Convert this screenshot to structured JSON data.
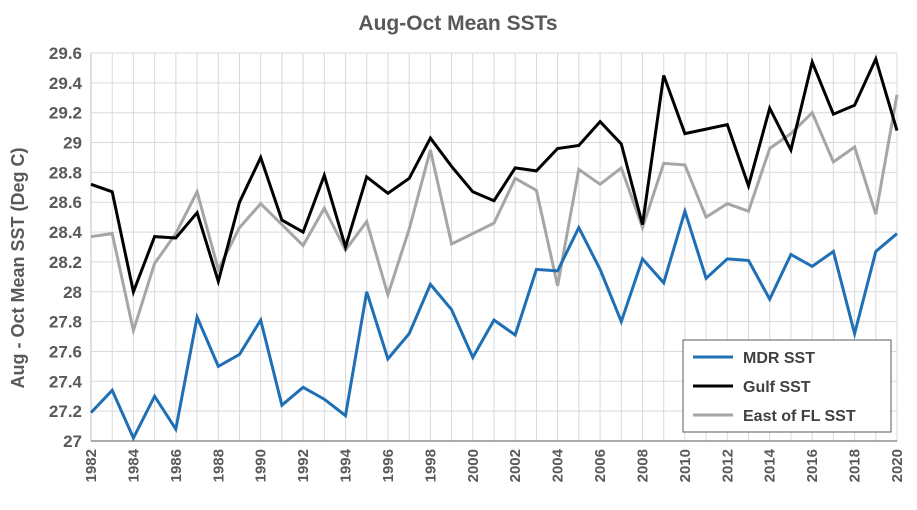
{
  "chart_data": {
    "type": "line",
    "title": "Aug-Oct Mean SSTs",
    "xlabel": "",
    "ylabel": "Aug - Oct Mean SST (Deg C)",
    "xlim": [
      1982,
      2020
    ],
    "ylim": [
      27,
      29.6
    ],
    "y_ticks": [
      "27",
      "27.2",
      "27.4",
      "27.6",
      "27.8",
      "28",
      "28.2",
      "28.4",
      "28.6",
      "28.8",
      "29",
      "29.2",
      "29.4",
      "29.6"
    ],
    "x_ticks": [
      "1982",
      "1984",
      "1986",
      "1988",
      "1990",
      "1992",
      "1994",
      "1996",
      "1998",
      "2000",
      "2002",
      "2004",
      "2006",
      "2008",
      "2010",
      "2012",
      "2014",
      "2016",
      "2018",
      "2020"
    ],
    "grid": true,
    "legend_position": "bottom-right",
    "x": [
      1982,
      1983,
      1984,
      1985,
      1986,
      1987,
      1988,
      1989,
      1990,
      1991,
      1992,
      1993,
      1994,
      1995,
      1996,
      1997,
      1998,
      1999,
      2000,
      2001,
      2002,
      2003,
      2004,
      2005,
      2006,
      2007,
      2008,
      2009,
      2010,
      2011,
      2012,
      2013,
      2014,
      2015,
      2016,
      2017,
      2018,
      2019,
      2020
    ],
    "series": [
      {
        "name": "MDR SST",
        "color": "#1f6fb5",
        "values": [
          27.19,
          27.34,
          27.02,
          27.3,
          27.08,
          27.83,
          27.5,
          27.58,
          27.81,
          27.24,
          27.36,
          27.28,
          27.17,
          28.0,
          27.55,
          27.72,
          28.05,
          27.88,
          27.56,
          27.81,
          27.71,
          28.15,
          28.14,
          28.43,
          28.15,
          27.8,
          28.22,
          28.06,
          28.54,
          28.09,
          28.22,
          28.21,
          27.95,
          28.25,
          28.17,
          28.27,
          27.72,
          28.27,
          28.39
        ]
      },
      {
        "name": "Gulf SST",
        "color": "#000000",
        "values": [
          28.72,
          28.67,
          28.0,
          28.37,
          28.36,
          28.53,
          28.07,
          28.6,
          28.9,
          28.48,
          28.4,
          28.78,
          28.3,
          28.77,
          28.66,
          28.76,
          29.03,
          28.84,
          28.67,
          28.61,
          28.83,
          28.81,
          28.96,
          28.98,
          29.14,
          28.99,
          28.45,
          29.45,
          29.06,
          29.09,
          29.12,
          28.71,
          29.23,
          28.95,
          29.54,
          29.19,
          29.25,
          29.56,
          29.08
        ]
      },
      {
        "name": "East of FL SST",
        "color": "#a6a6a6",
        "values": [
          28.37,
          28.39,
          27.74,
          28.19,
          28.39,
          28.67,
          28.15,
          28.43,
          28.59,
          28.45,
          28.31,
          28.56,
          28.28,
          28.47,
          27.98,
          28.42,
          28.95,
          28.32,
          28.39,
          28.46,
          28.76,
          28.68,
          28.04,
          28.82,
          28.72,
          28.83,
          28.43,
          28.86,
          28.85,
          28.5,
          28.59,
          28.54,
          28.96,
          29.06,
          29.2,
          28.87,
          28.97,
          28.52,
          29.32
        ]
      }
    ]
  }
}
